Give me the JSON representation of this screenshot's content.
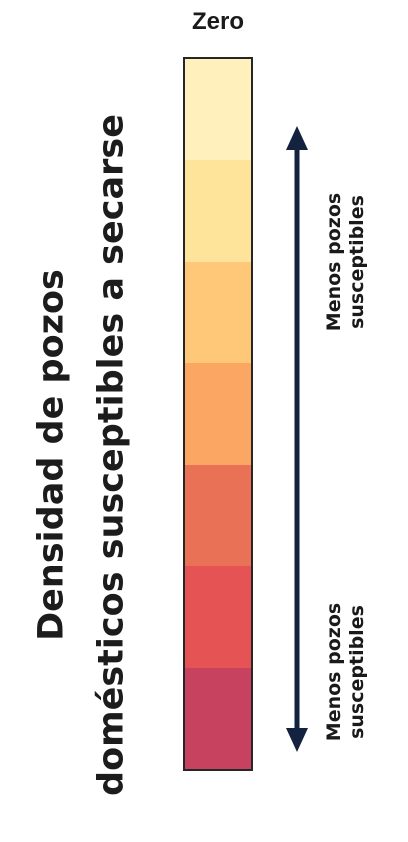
{
  "title": {
    "line1": "Densidad de pozos",
    "line2": "domésticos susceptibles a secarse"
  },
  "legend": {
    "top_label": "Zero",
    "colors": [
      "#FFF0BC",
      "#FEE39A",
      "#FEC878",
      "#FBA763",
      "#E97256",
      "#E65355",
      "#C7425E"
    ]
  },
  "arrow_labels": {
    "top": {
      "line1": "Menos pozos",
      "line2": "susceptibles"
    },
    "bottom": {
      "line1": "Menos pozos",
      "line2": "susceptibles"
    }
  },
  "colors": {
    "text": "#1a1a1a",
    "arrow": "#13233F",
    "border": "#262626"
  }
}
